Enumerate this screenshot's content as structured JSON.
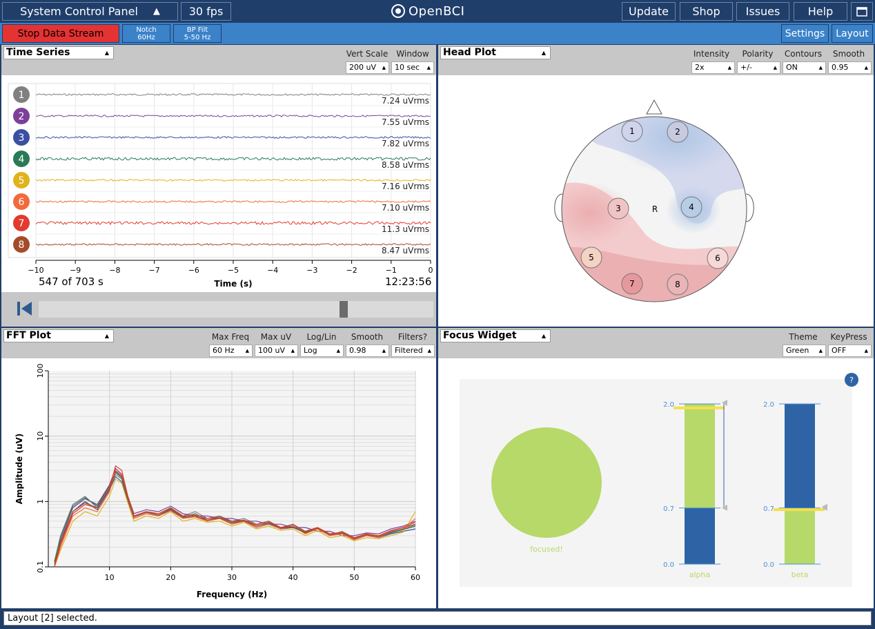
{
  "topbar": {
    "control_panel": "System Control Panel",
    "fps": "30 fps",
    "logo": "OpenBCI",
    "update": "Update",
    "shop": "Shop",
    "issues": "Issues",
    "help": "Help"
  },
  "bar2": {
    "stop_stream": "Stop Data Stream",
    "notch_line1": "Notch",
    "notch_line2": "60Hz",
    "bp_line1": "BP Filt",
    "bp_line2": "5-50 Hz",
    "settings": "Settings",
    "layout": "Layout"
  },
  "time_series": {
    "title": "Time Series",
    "vert_scale_label": "Vert Scale",
    "window_label": "Window",
    "vert_scale": "200 uV",
    "window": "10 sec",
    "channels": [
      {
        "num": "1",
        "rms": "7.24 uVrms",
        "color": "#808080"
      },
      {
        "num": "2",
        "rms": "7.55 uVrms",
        "color": "#7d3f98"
      },
      {
        "num": "3",
        "rms": "7.82 uVrms",
        "color": "#3a50a0"
      },
      {
        "num": "4",
        "rms": "8.58 uVrms",
        "color": "#2a7a55"
      },
      {
        "num": "5",
        "rms": "7.16 uVrms",
        "color": "#e0b31b"
      },
      {
        "num": "6",
        "rms": "7.10 uVrms",
        "color": "#f26a3c"
      },
      {
        "num": "7",
        "rms": "11.3 uVrms",
        "color": "#e23a2e"
      },
      {
        "num": "8",
        "rms": "8.47 uVrms",
        "color": "#a64b2a"
      }
    ],
    "x_ticks": [
      "−10",
      "−9",
      "−8",
      "−7",
      "−6",
      "−5",
      "−4",
      "−3",
      "−2",
      "−1",
      "0"
    ],
    "x_label": "Time (s)",
    "progress": "547 of 703 s",
    "clock": "12:23:56",
    "playback_fraction": 0.778
  },
  "head_plot": {
    "title": "Head Plot",
    "intensity_label": "Intensity",
    "polarity_label": "Polarity",
    "contours_label": "Contours",
    "smooth_label": "Smooth",
    "intensity": "2x",
    "polarity": "+/-",
    "contours": "ON",
    "smooth": "0.95",
    "reference": "R",
    "electrodes": [
      "1",
      "2",
      "3",
      "4",
      "5",
      "6",
      "7",
      "8"
    ]
  },
  "fft_plot": {
    "title": "FFT Plot",
    "max_freq_label": "Max Freq",
    "max_uv_label": "Max uV",
    "loglin_label": "Log/Lin",
    "smooth_label": "Smooth",
    "filters_label": "Filters?",
    "max_freq": "60 Hz",
    "max_uv": "100 uV",
    "loglin": "Log",
    "smooth": "0.98",
    "filters": "Filtered"
  },
  "focus_widget": {
    "title": "Focus Widget",
    "theme_label": "Theme",
    "keypress_label": "KeyPress",
    "theme": "Green",
    "keypress": "OFF",
    "help": "?",
    "state": "focused!",
    "alpha_label": "alpha",
    "beta_label": "beta",
    "ticks": [
      "2.0",
      "0.7",
      "0.0"
    ],
    "alpha_value": 0.7,
    "beta_value": 0.7,
    "alpha_marker": 1.95,
    "beta_marker": 0.68,
    "colors": {
      "green": "#b6d96a",
      "blue": "#2e63a6",
      "yellow": "#f5e04a"
    }
  },
  "status": "Layout [2] selected.",
  "chart_data": {
    "type": "line",
    "xlabel": "Frequency (Hz)",
    "ylabel": "Amplitude (uV)",
    "x_ticks": [
      "10",
      "20",
      "30",
      "40",
      "50",
      "60"
    ],
    "y_ticks": [
      "0.1",
      "1",
      "10",
      "100"
    ],
    "xlim": [
      0,
      60
    ],
    "ylim": [
      0.1,
      100
    ],
    "y_scale": "log",
    "grid": true,
    "x": [
      1,
      2,
      4,
      6,
      8,
      10,
      11,
      12,
      13,
      14,
      16,
      18,
      20,
      22,
      24,
      26,
      28,
      30,
      32,
      34,
      36,
      38,
      40,
      42,
      44,
      46,
      48,
      50,
      52,
      54,
      56,
      58,
      60
    ],
    "series": [
      {
        "color": "#808080",
        "values": [
          0.12,
          0.3,
          0.9,
          1.2,
          0.8,
          1.6,
          2.6,
          2.2,
          1.1,
          0.6,
          0.7,
          0.65,
          0.8,
          0.6,
          0.7,
          0.55,
          0.6,
          0.5,
          0.55,
          0.45,
          0.5,
          0.4,
          0.45,
          0.35,
          0.4,
          0.3,
          0.35,
          0.28,
          0.32,
          0.3,
          0.35,
          0.4,
          0.45
        ]
      },
      {
        "color": "#7d3f98",
        "values": [
          0.1,
          0.25,
          0.8,
          1.1,
          0.9,
          1.8,
          3.2,
          2.6,
          1.2,
          0.65,
          0.75,
          0.7,
          0.85,
          0.65,
          0.6,
          0.6,
          0.55,
          0.55,
          0.5,
          0.5,
          0.45,
          0.45,
          0.4,
          0.4,
          0.35,
          0.35,
          0.3,
          0.3,
          0.33,
          0.32,
          0.38,
          0.42,
          0.5
        ]
      },
      {
        "color": "#3a50a0",
        "values": [
          0.1,
          0.22,
          0.7,
          1.0,
          0.75,
          1.5,
          2.4,
          2.0,
          1.0,
          0.55,
          0.65,
          0.6,
          0.75,
          0.55,
          0.6,
          0.5,
          0.55,
          0.45,
          0.5,
          0.4,
          0.45,
          0.38,
          0.4,
          0.33,
          0.38,
          0.3,
          0.32,
          0.26,
          0.3,
          0.28,
          0.32,
          0.35,
          0.38
        ]
      },
      {
        "color": "#2a7a55",
        "values": [
          0.12,
          0.28,
          0.85,
          1.15,
          0.85,
          1.7,
          2.8,
          2.3,
          1.05,
          0.6,
          0.7,
          0.62,
          0.78,
          0.58,
          0.65,
          0.52,
          0.58,
          0.48,
          0.52,
          0.42,
          0.48,
          0.4,
          0.42,
          0.34,
          0.4,
          0.32,
          0.33,
          0.27,
          0.31,
          0.29,
          0.33,
          0.37,
          0.42
        ]
      },
      {
        "color": "#e0b31b",
        "values": [
          0.1,
          0.18,
          0.5,
          0.7,
          0.6,
          1.2,
          2.2,
          1.9,
          0.95,
          0.5,
          0.6,
          0.55,
          0.7,
          0.5,
          0.55,
          0.48,
          0.5,
          0.42,
          0.48,
          0.38,
          0.42,
          0.36,
          0.38,
          0.3,
          0.36,
          0.28,
          0.3,
          0.25,
          0.28,
          0.27,
          0.3,
          0.34,
          0.7
        ]
      },
      {
        "color": "#f26a3c",
        "values": [
          0.1,
          0.2,
          0.6,
          0.8,
          0.7,
          1.4,
          3.0,
          2.5,
          1.1,
          0.55,
          0.65,
          0.6,
          0.72,
          0.55,
          0.58,
          0.5,
          0.55,
          0.45,
          0.5,
          0.4,
          0.46,
          0.38,
          0.42,
          0.32,
          0.38,
          0.3,
          0.32,
          0.26,
          0.3,
          0.28,
          0.34,
          0.38,
          0.55
        ]
      },
      {
        "color": "#e23a2e",
        "values": [
          0.1,
          0.22,
          0.65,
          0.9,
          0.8,
          1.6,
          3.5,
          3.0,
          1.2,
          0.6,
          0.7,
          0.65,
          0.8,
          0.6,
          0.62,
          0.55,
          0.58,
          0.5,
          0.52,
          0.44,
          0.5,
          0.4,
          0.44,
          0.35,
          0.4,
          0.32,
          0.34,
          0.28,
          0.32,
          0.3,
          0.36,
          0.4,
          0.48
        ]
      },
      {
        "color": "#a64b2a",
        "values": [
          0.11,
          0.24,
          0.7,
          0.95,
          0.8,
          1.55,
          2.9,
          2.4,
          1.1,
          0.58,
          0.68,
          0.62,
          0.76,
          0.57,
          0.6,
          0.52,
          0.56,
          0.47,
          0.5,
          0.42,
          0.47,
          0.39,
          0.41,
          0.33,
          0.39,
          0.31,
          0.33,
          0.27,
          0.31,
          0.29,
          0.34,
          0.38,
          0.44
        ]
      }
    ]
  }
}
